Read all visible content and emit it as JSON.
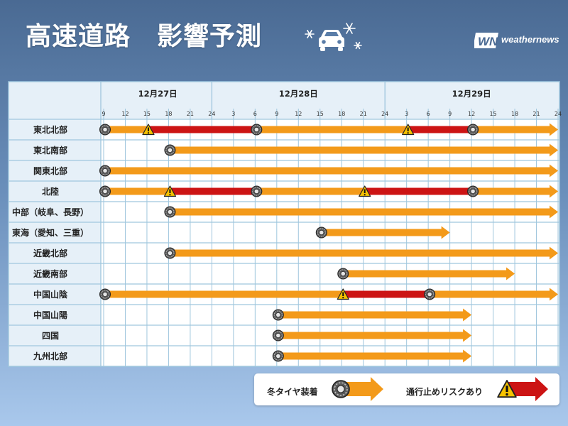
{
  "header": {
    "title": "高速道路　影響予測",
    "brand": "weathernews",
    "icons": [
      "snowflake-icon",
      "car-icon",
      "weathernews-logo-icon"
    ]
  },
  "legend": {
    "winter_tire": "冬タイヤ装着",
    "closure_risk": "通行止めリスクあり"
  },
  "colors": {
    "winter_tire": "#f39a1a",
    "closure_risk": "#cc1414",
    "grid_header": "#e6f0f8",
    "grid_line": "#9fc6dd"
  },
  "chart_data": {
    "type": "timeline",
    "dates": [
      "12月27日",
      "12月28日",
      "12月29日"
    ],
    "hour_ticks": [
      "9",
      "12",
      "15",
      "18",
      "21",
      "24",
      "3",
      "6",
      "9",
      "12",
      "15",
      "18",
      "21",
      "24",
      "3",
      "6",
      "9",
      "12",
      "15",
      "18",
      "21",
      "24"
    ],
    "x_unit": "hours from 12/27 09:00",
    "x_range": [
      0,
      63
    ],
    "day_boundaries": [
      15,
      39
    ],
    "rows": [
      {
        "region": "東北北部",
        "segments": [
          {
            "type": "winter_tire",
            "start": 0,
            "end": 6
          },
          {
            "type": "closure_risk",
            "start": 6,
            "end": 21
          },
          {
            "type": "winter_tire",
            "start": 21,
            "end": 42
          },
          {
            "type": "closure_risk",
            "start": 42,
            "end": 51
          },
          {
            "type": "winter_tire",
            "start": 51,
            "end": 63
          }
        ]
      },
      {
        "region": "東北南部",
        "segments": [
          {
            "type": "winter_tire",
            "start": 9,
            "end": 63
          }
        ]
      },
      {
        "region": "関東北部",
        "segments": [
          {
            "type": "winter_tire",
            "start": 0,
            "end": 63
          }
        ]
      },
      {
        "region": "北陸",
        "segments": [
          {
            "type": "winter_tire",
            "start": 0,
            "end": 9
          },
          {
            "type": "closure_risk",
            "start": 9,
            "end": 21
          },
          {
            "type": "winter_tire",
            "start": 21,
            "end": 36
          },
          {
            "type": "closure_risk",
            "start": 36,
            "end": 51
          },
          {
            "type": "winter_tire",
            "start": 51,
            "end": 63
          }
        ]
      },
      {
        "region": "中部（岐阜、長野）",
        "segments": [
          {
            "type": "winter_tire",
            "start": 9,
            "end": 63
          }
        ]
      },
      {
        "region": "東海（愛知、三重）",
        "segments": [
          {
            "type": "winter_tire",
            "start": 30,
            "end": 48
          }
        ]
      },
      {
        "region": "近畿北部",
        "segments": [
          {
            "type": "winter_tire",
            "start": 9,
            "end": 63
          }
        ]
      },
      {
        "region": "近畿南部",
        "segments": [
          {
            "type": "winter_tire",
            "start": 33,
            "end": 57
          }
        ]
      },
      {
        "region": "中国山陰",
        "segments": [
          {
            "type": "winter_tire",
            "start": 0,
            "end": 33
          },
          {
            "type": "closure_risk",
            "start": 33,
            "end": 45
          },
          {
            "type": "winter_tire",
            "start": 45,
            "end": 63
          }
        ]
      },
      {
        "region": "中国山陽",
        "segments": [
          {
            "type": "winter_tire",
            "start": 24,
            "end": 51
          }
        ]
      },
      {
        "region": "四国",
        "segments": [
          {
            "type": "winter_tire",
            "start": 24,
            "end": 51
          }
        ]
      },
      {
        "region": "九州北部",
        "segments": [
          {
            "type": "winter_tire",
            "start": 24,
            "end": 51
          }
        ]
      }
    ]
  }
}
